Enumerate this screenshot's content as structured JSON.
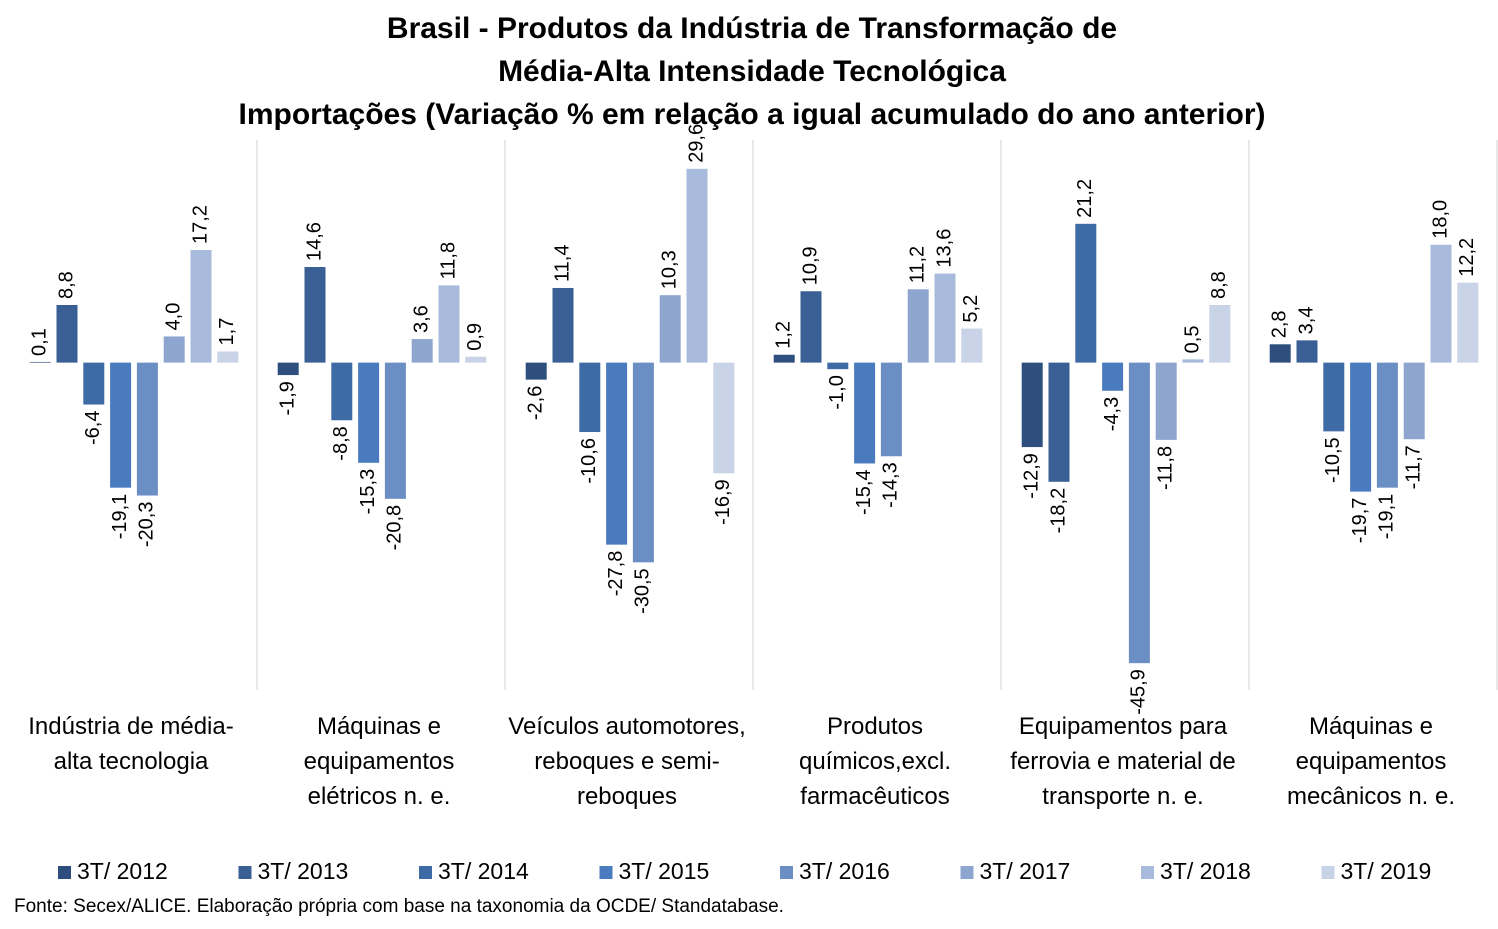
{
  "chart_data": {
    "type": "bar",
    "title": [
      "Brasil - Produtos da Indústria de Transformação de",
      "Média-Alta Intensidade Tecnológica",
      "Importações (Variação % em relação a igual acumulado do ano anterior)"
    ],
    "source": "Fonte: Secex/ALICE. Elaboração própria com base na taxonomia da OCDE/ Standatabase.",
    "categories": [
      "Indústria de média-alta tecnologia",
      "Máquinas e equipamentos elétricos n. e.",
      "Veículos automotores, reboques e semi-reboques",
      "Produtos químicos,excl. farmacêuticos",
      "Equipamentos para ferrovia e material de transporte n. e.",
      "Máquinas e equipamentos mecânicos  n. e."
    ],
    "ylim": [
      -50,
      34
    ],
    "series": [
      {
        "name": "3T/ 2012",
        "color": "#2e4f7e",
        "values": [
          0.1,
          -1.9,
          -2.6,
          1.2,
          -12.9,
          2.8
        ],
        "value_labels": [
          "0,1",
          "-1,9",
          "-2,6",
          "1,2",
          "-12,9",
          "2,8"
        ]
      },
      {
        "name": "3T/ 2013",
        "color": "#3a5f94",
        "values": [
          8.8,
          14.6,
          11.4,
          10.9,
          -18.2,
          3.4
        ],
        "value_labels": [
          "8,8",
          "14,6",
          "11,4",
          "10,9",
          "-18,2",
          "3,4"
        ]
      },
      {
        "name": "3T/ 2014",
        "color": "#3e6aa6",
        "values": [
          -6.4,
          -8.8,
          -10.6,
          -1.0,
          21.2,
          -10.5
        ],
        "value_labels": [
          "-6,4",
          "-8,8",
          "-10,6",
          "-1,0",
          "21,2",
          "-10,5"
        ]
      },
      {
        "name": "3T/ 2015",
        "color": "#4a7bbf",
        "values": [
          -19.1,
          -15.3,
          -27.8,
          -15.4,
          -4.3,
          -19.7
        ],
        "value_labels": [
          "-19,1",
          "-15,3",
          "-27,8",
          "-15,4",
          "-4,3",
          "-19,7"
        ]
      },
      {
        "name": "3T/ 2016",
        "color": "#6b8fc4",
        "values": [
          -20.3,
          -20.8,
          -30.5,
          -14.3,
          -45.9,
          -19.1
        ],
        "value_labels": [
          "-20,3",
          "-20,8",
          "-30,5",
          "-14,3",
          "-45,9",
          "-19,1"
        ]
      },
      {
        "name": "3T/ 2017",
        "color": "#8ea6cf",
        "values": [
          4.0,
          3.6,
          10.3,
          11.2,
          -11.8,
          -11.7
        ],
        "value_labels": [
          "4,0",
          "3,6",
          "10,3",
          "11,2",
          "-11,8",
          "-11,7"
        ]
      },
      {
        "name": "3T/ 2018",
        "color": "#a9bbdc",
        "values": [
          17.2,
          11.8,
          29.6,
          13.6,
          0.5,
          18.0
        ],
        "value_labels": [
          "17,2",
          "11,8",
          "29,6",
          "13,6",
          "0,5",
          "18,0"
        ]
      },
      {
        "name": "3T/ 2019",
        "color": "#c9d3e8",
        "values": [
          1.7,
          0.9,
          -16.9,
          5.2,
          8.8,
          12.2
        ],
        "value_labels": [
          "1,7",
          "0,9",
          "-16,9",
          "5,2",
          "8,8",
          "12,2"
        ]
      }
    ]
  }
}
